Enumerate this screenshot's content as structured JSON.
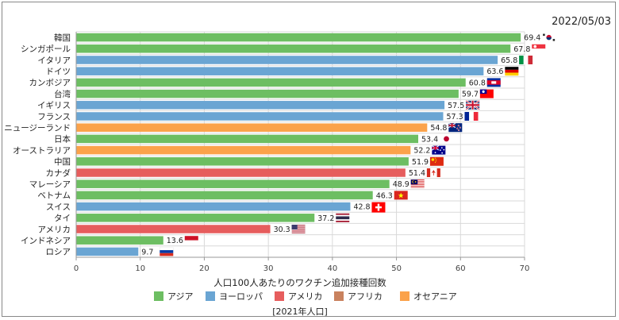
{
  "date_label": "2022/05/03",
  "colors": {
    "asia": "#6dbe62",
    "europe": "#6aa5d3",
    "america": "#e65d5d",
    "africa": "#c9825e",
    "oceania": "#fba24a",
    "grid": "#d9d9d9"
  },
  "chart_data": {
    "type": "bar",
    "orientation": "horizontal",
    "xlabel": "人口100人あたりのワクチン追加接種回数",
    "x_ticks": [
      0,
      10,
      20,
      30,
      40,
      50,
      60,
      70
    ],
    "xlim": [
      0,
      70
    ],
    "grid": true,
    "legend_position": "bottom",
    "legend": [
      {
        "label": "アジア",
        "key": "asia"
      },
      {
        "label": "ヨーロッパ",
        "key": "europe"
      },
      {
        "label": "アメリカ",
        "key": "america"
      },
      {
        "label": "アフリカ",
        "key": "africa"
      },
      {
        "label": "オセアニア",
        "key": "oceania"
      }
    ],
    "bars": [
      {
        "category": "韓国",
        "value": 69.4,
        "region": "asia",
        "flag": "south-korea-flag-icon"
      },
      {
        "category": "シンガポール",
        "value": 67.8,
        "region": "asia",
        "flag": "singapore-flag-icon"
      },
      {
        "category": "イタリア",
        "value": 65.8,
        "region": "europe",
        "flag": "italy-flag-icon"
      },
      {
        "category": "ドイツ",
        "value": 63.6,
        "region": "europe",
        "flag": "germany-flag-icon"
      },
      {
        "category": "カンボジア",
        "value": 60.8,
        "region": "asia",
        "flag": "cambodia-flag-icon"
      },
      {
        "category": "台湾",
        "value": 59.7,
        "region": "asia",
        "flag": "taiwan-flag-icon"
      },
      {
        "category": "イギリス",
        "value": 57.5,
        "region": "europe",
        "flag": "uk-flag-icon"
      },
      {
        "category": "フランス",
        "value": 57.3,
        "region": "europe",
        "flag": "france-flag-icon"
      },
      {
        "category": "ニュージーランド",
        "value": 54.8,
        "region": "oceania",
        "flag": "new-zealand-flag-icon"
      },
      {
        "category": "日本",
        "value": 53.4,
        "region": "asia",
        "flag": "japan-flag-icon"
      },
      {
        "category": "オーストラリア",
        "value": 52.2,
        "region": "oceania",
        "flag": "australia-flag-icon"
      },
      {
        "category": "中国",
        "value": 51.9,
        "region": "asia",
        "flag": "china-flag-icon"
      },
      {
        "category": "カナダ",
        "value": 51.4,
        "region": "america",
        "flag": "canada-flag-icon"
      },
      {
        "category": "マレーシア",
        "value": 48.9,
        "region": "asia",
        "flag": "malaysia-flag-icon"
      },
      {
        "category": "ベトナム",
        "value": 46.3,
        "region": "asia",
        "flag": "vietnam-flag-icon"
      },
      {
        "category": "スイス",
        "value": 42.8,
        "region": "europe",
        "flag": "switzerland-flag-icon"
      },
      {
        "category": "タイ",
        "value": 37.2,
        "region": "asia",
        "flag": "thailand-flag-icon"
      },
      {
        "category": "アメリカ",
        "value": 30.3,
        "region": "america",
        "flag": "usa-flag-icon"
      },
      {
        "category": "インドネシア",
        "value": 13.6,
        "region": "asia",
        "flag": "indonesia-flag-icon"
      },
      {
        "category": "ロシア",
        "value": 9.7,
        "region": "europe",
        "flag": "russia-flag-icon"
      }
    ],
    "footnote": "[2021年人口]"
  }
}
